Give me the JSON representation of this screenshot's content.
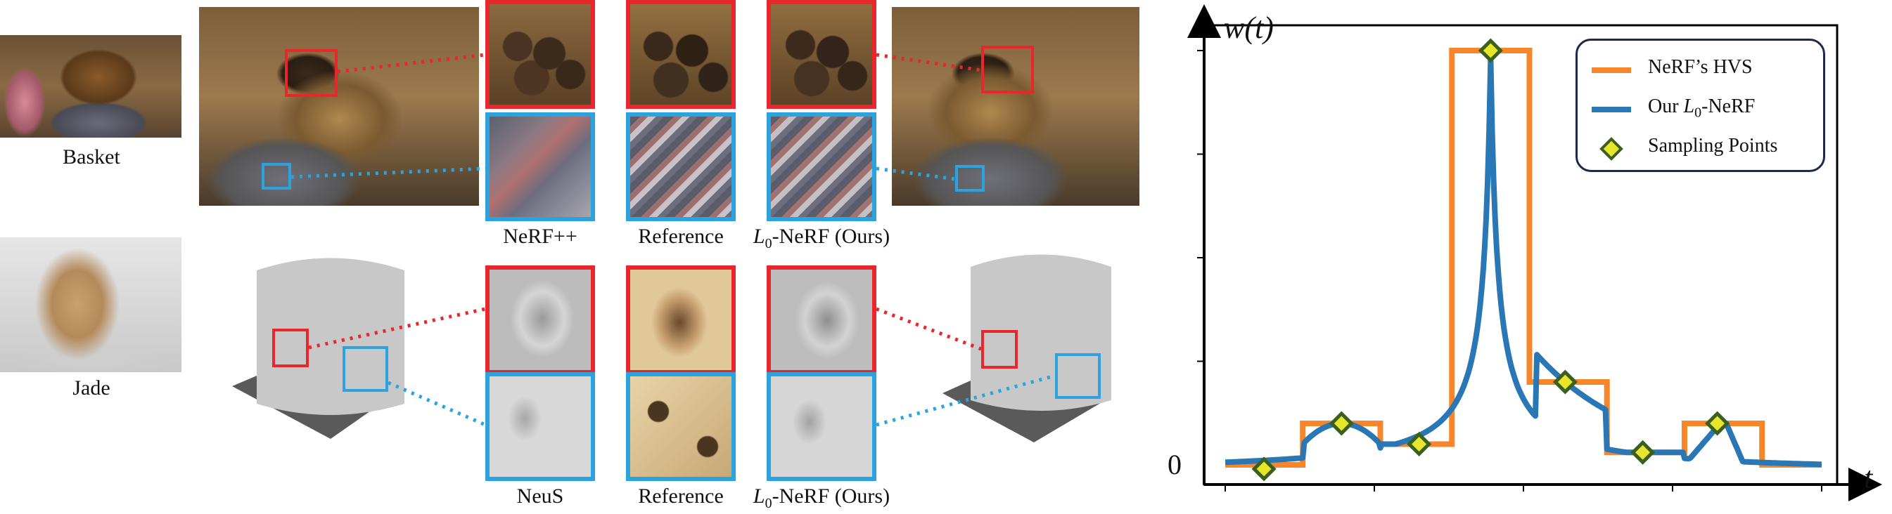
{
  "scenes": [
    {
      "label": "Basket",
      "captions": [
        "NeRF++",
        "Reference",
        "L",
        "0",
        "-NeRF (Ours)"
      ]
    },
    {
      "label": "Jade",
      "captions": [
        "NeuS",
        "Reference",
        "L",
        "0",
        "-NeRF (Ours)"
      ]
    }
  ],
  "colors": {
    "red_box": "#e8262b",
    "blue_box": "#2aa3de",
    "hvs_line": "#f7862a",
    "ours_line": "#2a77b5",
    "marker_fill": "#e8e62a",
    "marker_edge": "#3b5f1e"
  },
  "chart_data": {
    "type": "line",
    "ylabel": "w(t)",
    "xlabel": "t",
    "y_tick_label": "0",
    "legend_position": "top-right",
    "series": [
      {
        "name_parts": [
          "NeRF’s HVS"
        ],
        "style": "step"
      },
      {
        "name_parts": [
          "Our ",
          "L",
          "0",
          "-NeRF"
        ],
        "style": "smooth"
      },
      {
        "name_parts": [
          "Sampling Points"
        ],
        "style": "marker"
      }
    ],
    "hvs_steps": [
      {
        "x0": 0.0,
        "x1": 0.13,
        "y": 0.0
      },
      {
        "x0": 0.13,
        "x1": 0.26,
        "y": 0.1
      },
      {
        "x0": 0.26,
        "x1": 0.38,
        "y": 0.05
      },
      {
        "x0": 0.38,
        "x1": 0.51,
        "y": 1.0
      },
      {
        "x0": 0.51,
        "x1": 0.64,
        "y": 0.2
      },
      {
        "x0": 0.64,
        "x1": 0.77,
        "y": 0.03
      },
      {
        "x0": 0.77,
        "x1": 0.9,
        "y": 0.1
      },
      {
        "x0": 0.9,
        "x1": 1.0,
        "y": 0.0
      }
    ],
    "sampling_points": [
      {
        "x": 0.065,
        "y": -0.01
      },
      {
        "x": 0.195,
        "y": 0.1
      },
      {
        "x": 0.325,
        "y": 0.05
      },
      {
        "x": 0.445,
        "y": 1.0
      },
      {
        "x": 0.57,
        "y": 0.2
      },
      {
        "x": 0.7,
        "y": 0.03
      },
      {
        "x": 0.825,
        "y": 0.1
      }
    ],
    "x_ticks": 5,
    "y_ticks": 4
  }
}
